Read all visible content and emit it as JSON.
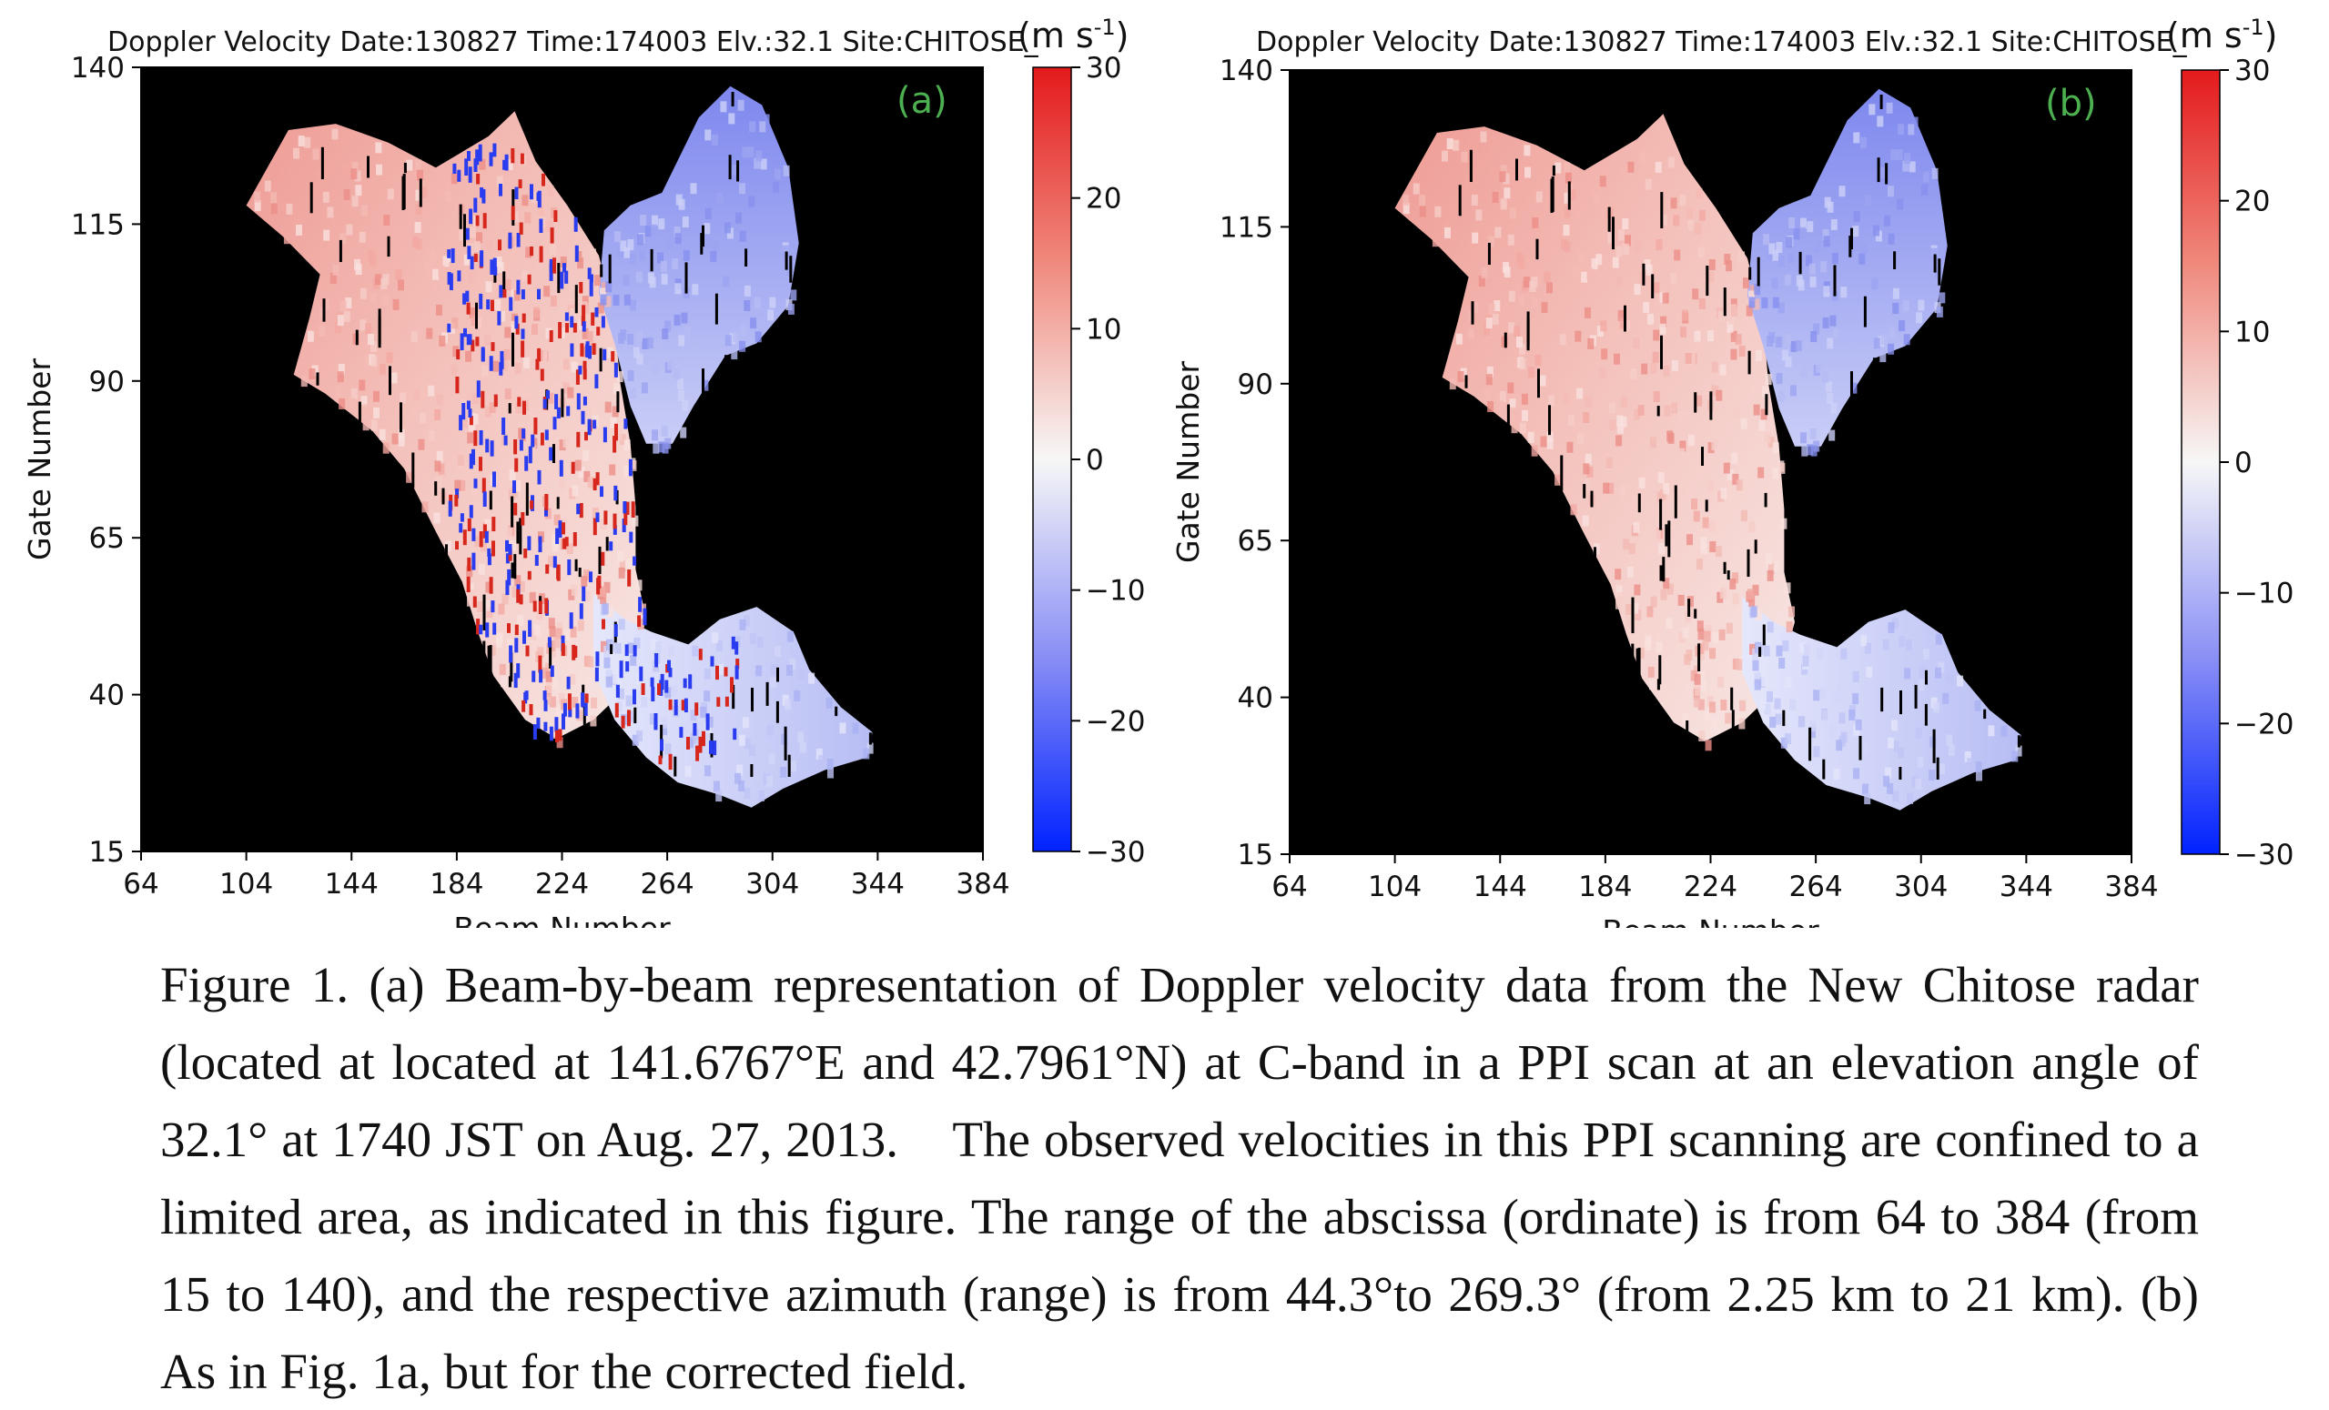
{
  "figure": {
    "panels": [
      {
        "id": "a",
        "panel_label": "(a)",
        "title": "Doppler Velocity  Date:130827 Time:174003 Elv.:32.1 Site:CHITOSE_",
        "unit": "(m s",
        "unit_exp": "-1",
        "unit_close": ")",
        "xlabel": "Beam Number",
        "ylabel": "Gate Number",
        "noisy": true
      },
      {
        "id": "b",
        "panel_label": "(b)",
        "title": "Doppler Velocity  Date:130827 Time:174003 Elv.:32.1 Site:CHITOSE_",
        "unit": "(m s",
        "unit_exp": "-1",
        "unit_close": ")",
        "xlabel": "Beam Number",
        "ylabel": "Gate Number",
        "noisy": false
      }
    ],
    "x_ticks": [
      64,
      104,
      144,
      184,
      224,
      264,
      304,
      344,
      384
    ],
    "y_ticks": [
      15,
      40,
      65,
      90,
      115,
      140
    ],
    "colorbar_ticks": [
      30,
      20,
      10,
      0,
      -10,
      -20,
      -30
    ],
    "colorbar_tick_labels": [
      "30",
      "20",
      "10",
      "0",
      "−10",
      "−20",
      "−30"
    ],
    "colors": {
      "background": "#000000",
      "panel_label": "#4caf50",
      "cmap_low": "#0022ff",
      "cmap_mid": "#f7f7f7",
      "cmap_high": "#e41a1c"
    }
  },
  "chart_data": [
    {
      "type": "heatmap",
      "title": "Doppler Velocity  Date:130827 Time:174003 Elv.:32.1 Site:CHITOSE_",
      "xlabel": "Beam Number",
      "ylabel": "Gate Number",
      "xlim": [
        64,
        384
      ],
      "ylim": [
        15,
        140
      ],
      "colorbar": {
        "label": "(m s-1)",
        "range": [
          -30,
          30
        ],
        "colormap": "blue-white-red"
      },
      "regions": [
        {
          "name": "positive",
          "approx_velocity": 10,
          "beam_range": [
            100,
            260
          ],
          "gate_range": [
            30,
            133
          ]
        },
        {
          "name": "negative north",
          "approx_velocity": -12,
          "beam_range": [
            238,
            316
          ],
          "gate_range": [
            80,
            137
          ]
        },
        {
          "name": "negative south",
          "approx_velocity": -5,
          "beam_range": [
            240,
            342
          ],
          "gate_range": [
            24,
            55
          ]
        }
      ]
    },
    {
      "type": "heatmap",
      "title": "Doppler Velocity  Date:130827 Time:174003 Elv.:32.1 Site:CHITOSE_",
      "xlabel": "Beam Number",
      "ylabel": "Gate Number",
      "xlim": [
        64,
        384
      ],
      "ylim": [
        15,
        140
      ],
      "colorbar": {
        "label": "(m s-1)",
        "range": [
          -30,
          30
        ],
        "colormap": "blue-white-red"
      },
      "regions": [
        {
          "name": "positive",
          "approx_velocity": 10,
          "beam_range": [
            100,
            260
          ],
          "gate_range": [
            30,
            133
          ]
        },
        {
          "name": "negative north",
          "approx_velocity": -12,
          "beam_range": [
            238,
            316
          ],
          "gate_range": [
            80,
            137
          ]
        },
        {
          "name": "negative south",
          "approx_velocity": -5,
          "beam_range": [
            240,
            342
          ],
          "gate_range": [
            24,
            55
          ]
        }
      ]
    }
  ],
  "caption": "Figure 1. (a) Beam-by-beam representation of Doppler velocity data from the New Chitose radar (located at located at 141.6767°E and 42.7961°N) at C-band in a PPI scan at an elevation angle of 32.1° at 1740 JST on Aug. 27, 2013.    The observed velocities in this PPI scanning are confined to a limited area, as indicated in this figure. The range of the abscissa (ordinate) is from 64 to 384 (from 15 to 140), and the respective azimuth (range) is from 44.3°to 269.3° (from 2.25 km to 21 km). (b) As in Fig. 1a, but for the corrected field."
}
